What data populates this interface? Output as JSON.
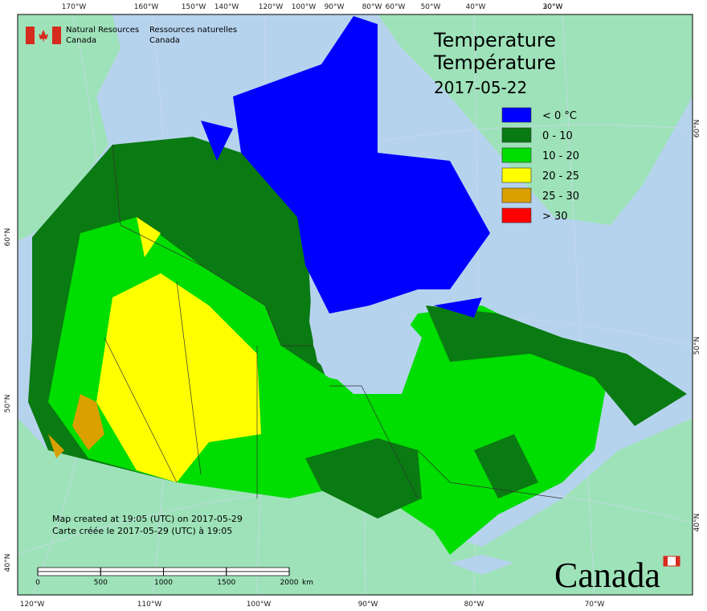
{
  "header": {
    "agency_en": [
      "Natural Resources",
      "Canada"
    ],
    "agency_fr": [
      "Ressources naturelles",
      "Canada"
    ],
    "wordmark": "Canada"
  },
  "title": {
    "lines": [
      "Temperature",
      "Température",
      "2017-05-22"
    ]
  },
  "legend": [
    {
      "label": "< 0 °C",
      "color": "#0000ff"
    },
    {
      "label": "0 - 10",
      "color": "#0a7a12"
    },
    {
      "label": "10 - 20",
      "color": "#00dd00"
    },
    {
      "label": "20 - 25",
      "color": "#ffff00"
    },
    {
      "label": "25 - 30",
      "color": "#d9a000"
    },
    {
      "label": "> 30",
      "color": "#ff0000"
    }
  ],
  "notes": [
    "Map created at 19:05 (UTC) on 2017-05-29",
    "Carte créée le 2017-05-29 (UTC) à 19:05"
  ],
  "scale": {
    "ticks": [
      0,
      500,
      1000,
      1500,
      2000
    ],
    "unit": "km"
  },
  "graticule": {
    "top": [
      "170°W",
      "160°W",
      "150°W",
      "140°W",
      "120°W",
      "100°W",
      "90°W",
      "80°W",
      "60°W",
      "50°W",
      "40°W",
      "30°W",
      "20°W"
    ],
    "bottom": [
      "120°W",
      "110°W",
      "100°W",
      "90°W",
      "80°W",
      "70°W"
    ],
    "left": [
      "60°N",
      "50°N",
      "40°N"
    ],
    "right": [
      "60°N",
      "50°N",
      "40°N"
    ]
  }
}
